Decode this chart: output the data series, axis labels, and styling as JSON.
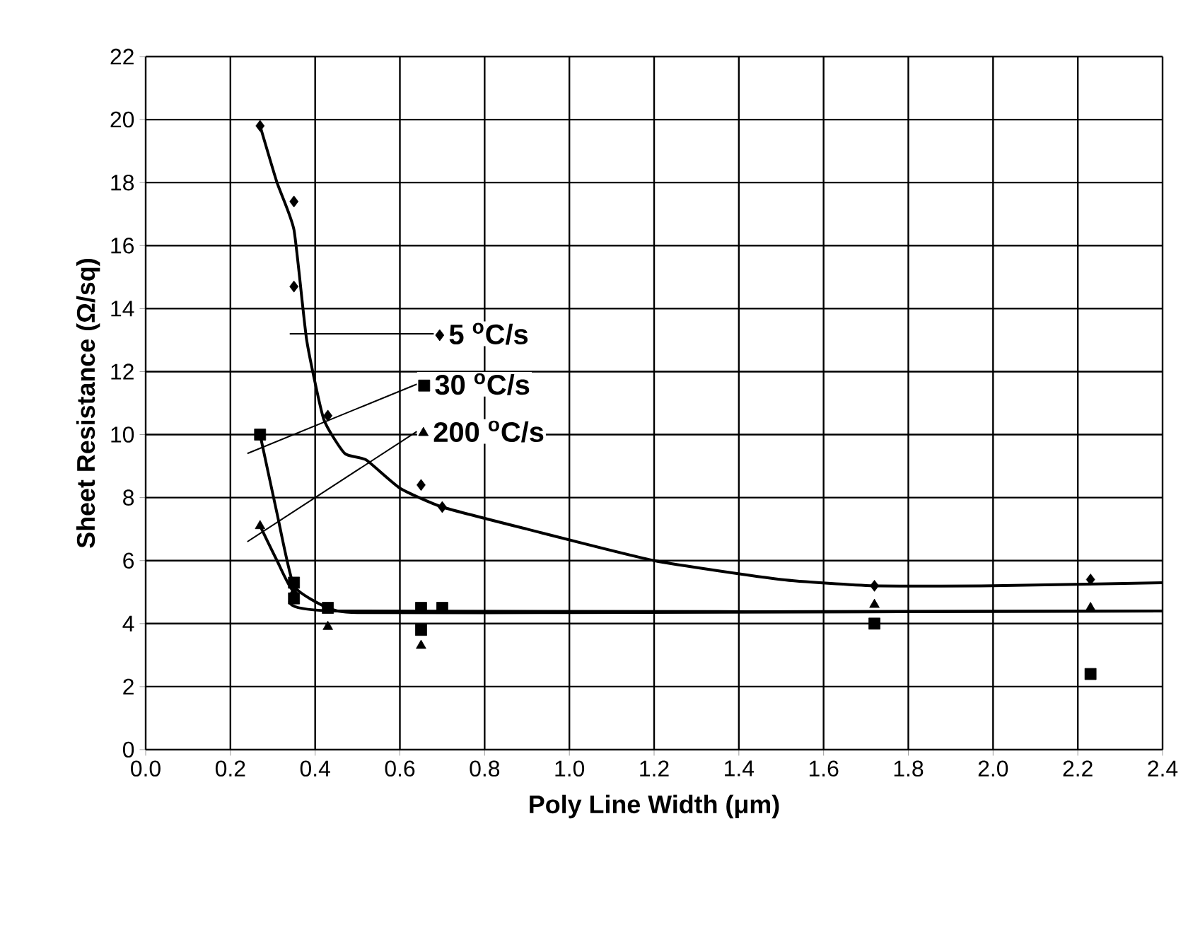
{
  "chart_data": {
    "type": "scatter",
    "xlabel": "Poly Line Width (μm)",
    "ylabel": "Sheet Resistance (Ω/sq)",
    "xlim": [
      0,
      2.4
    ],
    "ylim": [
      0,
      22
    ],
    "xticks": [
      {
        "value": 0,
        "label": "0.0"
      },
      {
        "value": 0.2,
        "label": "0.2"
      },
      {
        "value": 0.4,
        "label": "0.4"
      },
      {
        "value": 0.6,
        "label": "0.6"
      },
      {
        "value": 0.8,
        "label": "0.8"
      },
      {
        "value": 1,
        "label": "1.0"
      },
      {
        "value": 1.2,
        "label": "1.2"
      },
      {
        "value": 1.4,
        "label": "1.4"
      },
      {
        "value": 1.6,
        "label": "1.6"
      },
      {
        "value": 1.8,
        "label": "1.8"
      },
      {
        "value": 2,
        "label": "2.0"
      },
      {
        "value": 2.2,
        "label": "2.2"
      },
      {
        "value": 2.4,
        "label": "2.4"
      }
    ],
    "yticks": [
      0,
      2,
      4,
      6,
      8,
      10,
      12,
      14,
      16,
      18,
      20,
      22
    ],
    "grid": true,
    "legend": "center",
    "series": [
      {
        "name": "5 $^{o}$C/s",
        "color": "#000000",
        "marker": "diamond",
        "x": [
          0.27,
          0.35,
          0.35,
          0.43,
          0.65,
          0.7,
          1.72,
          2.23
        ],
        "values": [
          19.8,
          17.4,
          14.7,
          10.6,
          8.4,
          7.7,
          5.2,
          5.4
        ]
      },
      {
        "name": "30 $^{o}$C/s",
        "color": "#000000",
        "marker": "square",
        "x": [
          0.27,
          0.35,
          0.35,
          0.43,
          0.65,
          0.65,
          0.7,
          1.72,
          2.23
        ],
        "values": [
          10.0,
          5.3,
          4.8,
          4.5,
          4.5,
          3.8,
          4.5,
          4.0,
          2.4
        ]
      },
      {
        "name": "200 $^{o}$C/s",
        "color": "#000000",
        "marker": "triangle",
        "x": [
          0.27,
          0.35,
          0.43,
          0.65,
          1.72,
          2.23
        ],
        "values": [
          7.1,
          5.0,
          3.9,
          3.3,
          4.6,
          4.5
        ]
      },
      {
        "type": "line",
        "color": "#000000",
        "marker": "none",
        "x": [
          0.27,
          0.31,
          0.35,
          0.38,
          0.42,
          0.47,
          0.52,
          0.6,
          0.7,
          0.9,
          1.2,
          1.5,
          1.72,
          2.0,
          2.4
        ],
        "values": [
          19.8,
          18.0,
          16.5,
          13.0,
          10.5,
          9.4,
          9.2,
          8.3,
          7.7,
          7.0,
          6.0,
          5.4,
          5.2,
          5.2,
          5.3
        ]
      },
      {
        "type": "line",
        "color": "#000000",
        "marker": "none",
        "x": [
          0.27,
          0.31,
          0.35,
          0.43,
          0.5,
          1.0,
          2.4
        ],
        "values": [
          10.0,
          7.5,
          5.2,
          4.5,
          4.35,
          4.35,
          4.4
        ]
      },
      {
        "type": "line",
        "color": "#000000",
        "marker": "none",
        "x": [
          0.27,
          0.31,
          0.35,
          0.45,
          2.4
        ],
        "values": [
          7.1,
          6.0,
          5.0,
          4.4,
          4.4
        ]
      }
    ]
  }
}
